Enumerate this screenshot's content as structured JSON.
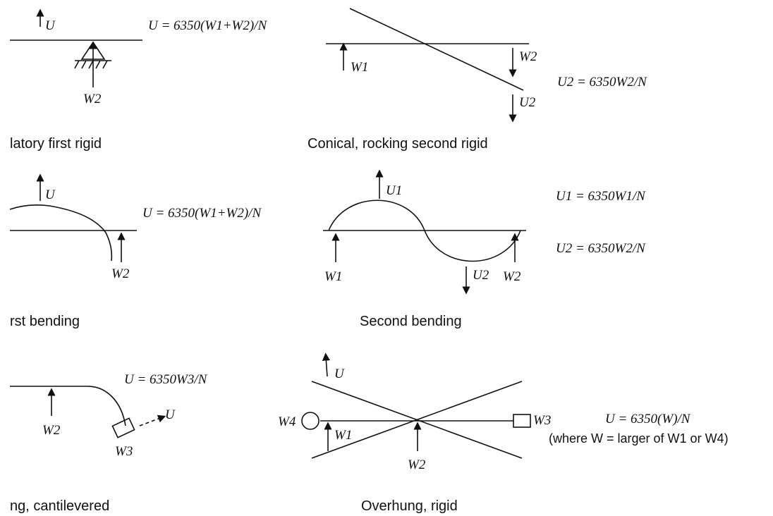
{
  "panels": {
    "p1": {
      "caption": "latory first rigid",
      "formula": "U = 6350(W1+W2)/N",
      "labels": {
        "u": "U",
        "w2": "W2"
      }
    },
    "p2": {
      "caption": "Conical, rocking second rigid",
      "formula": "U2 = 6350W2/N",
      "labels": {
        "w1": "W1",
        "w2": "W2",
        "u2": "U2"
      }
    },
    "p3": {
      "caption": "rst bending",
      "formula": "U = 6350(W1+W2)/N",
      "labels": {
        "u": "U",
        "w2": "W2"
      }
    },
    "p4": {
      "caption": "Second bending",
      "formula1": "U1 = 6350W1/N",
      "formula2": "U2 = 6350W2/N",
      "labels": {
        "u1": "U1",
        "w1": "W1",
        "u2": "U2",
        "w2": "W2"
      }
    },
    "p5": {
      "caption": "ng, cantilevered",
      "formula": "U = 6350W3/N",
      "labels": {
        "w2": "W2",
        "w3": "W3",
        "u": "U"
      }
    },
    "p6": {
      "caption": "Overhung, rigid",
      "formula": "U = 6350(W)/N",
      "note": "(where W = larger of W1 or W4)",
      "labels": {
        "u": "U",
        "w1": "W1",
        "w2": "W2",
        "w3": "W3",
        "w4": "W4"
      }
    }
  }
}
